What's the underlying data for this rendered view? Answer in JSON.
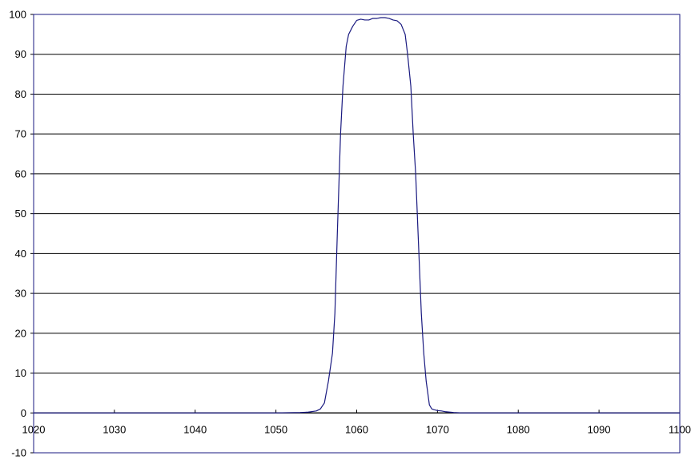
{
  "chart_data": {
    "type": "line",
    "title": "",
    "xlabel": "",
    "ylabel": "",
    "xlim": [
      1020,
      1100
    ],
    "ylim": [
      -10,
      100
    ],
    "grid": true,
    "x_ticks": [
      "1020",
      "1030",
      "1040",
      "1050",
      "1060",
      "1070",
      "1080",
      "1090",
      "1100"
    ],
    "y_ticks": [
      "100",
      "90",
      "80",
      "70",
      "60",
      "50",
      "40",
      "30",
      "20",
      "10",
      "0",
      "-10"
    ],
    "colors": {
      "line": "#1a1a80",
      "grid": "#000000",
      "frame": "#1a1a80"
    },
    "series": [
      {
        "x": [
          1020,
          1030,
          1040,
          1050,
          1053,
          1054,
          1055,
          1055.5,
          1056,
          1056.5,
          1057,
          1057.3,
          1057.6,
          1058,
          1058.3,
          1058.7,
          1059,
          1059.5,
          1060,
          1060.5,
          1061,
          1061.5,
          1062,
          1062.5,
          1063,
          1063.5,
          1064,
          1064.5,
          1065,
          1065.5,
          1066,
          1066.3,
          1066.7,
          1067,
          1067.3,
          1067.6,
          1068,
          1068.3,
          1068.6,
          1069,
          1069.3,
          1069.6,
          1070,
          1070.5,
          1071,
          1072,
          1073,
          1080,
          1090,
          1100
        ],
        "y": [
          0,
          0,
          0,
          0,
          0.1,
          0.2,
          0.5,
          1,
          2.5,
          8,
          15,
          25,
          45,
          70,
          82,
          92,
          95,
          97,
          98.5,
          98.8,
          98.6,
          98.6,
          99,
          99,
          99.2,
          99.2,
          99,
          98.6,
          98.4,
          97.5,
          95,
          90,
          82,
          70,
          60,
          45,
          25,
          15,
          8,
          2,
          1,
          0.8,
          0.6,
          0.5,
          0.3,
          0.1,
          0,
          0,
          0,
          0
        ]
      }
    ]
  }
}
